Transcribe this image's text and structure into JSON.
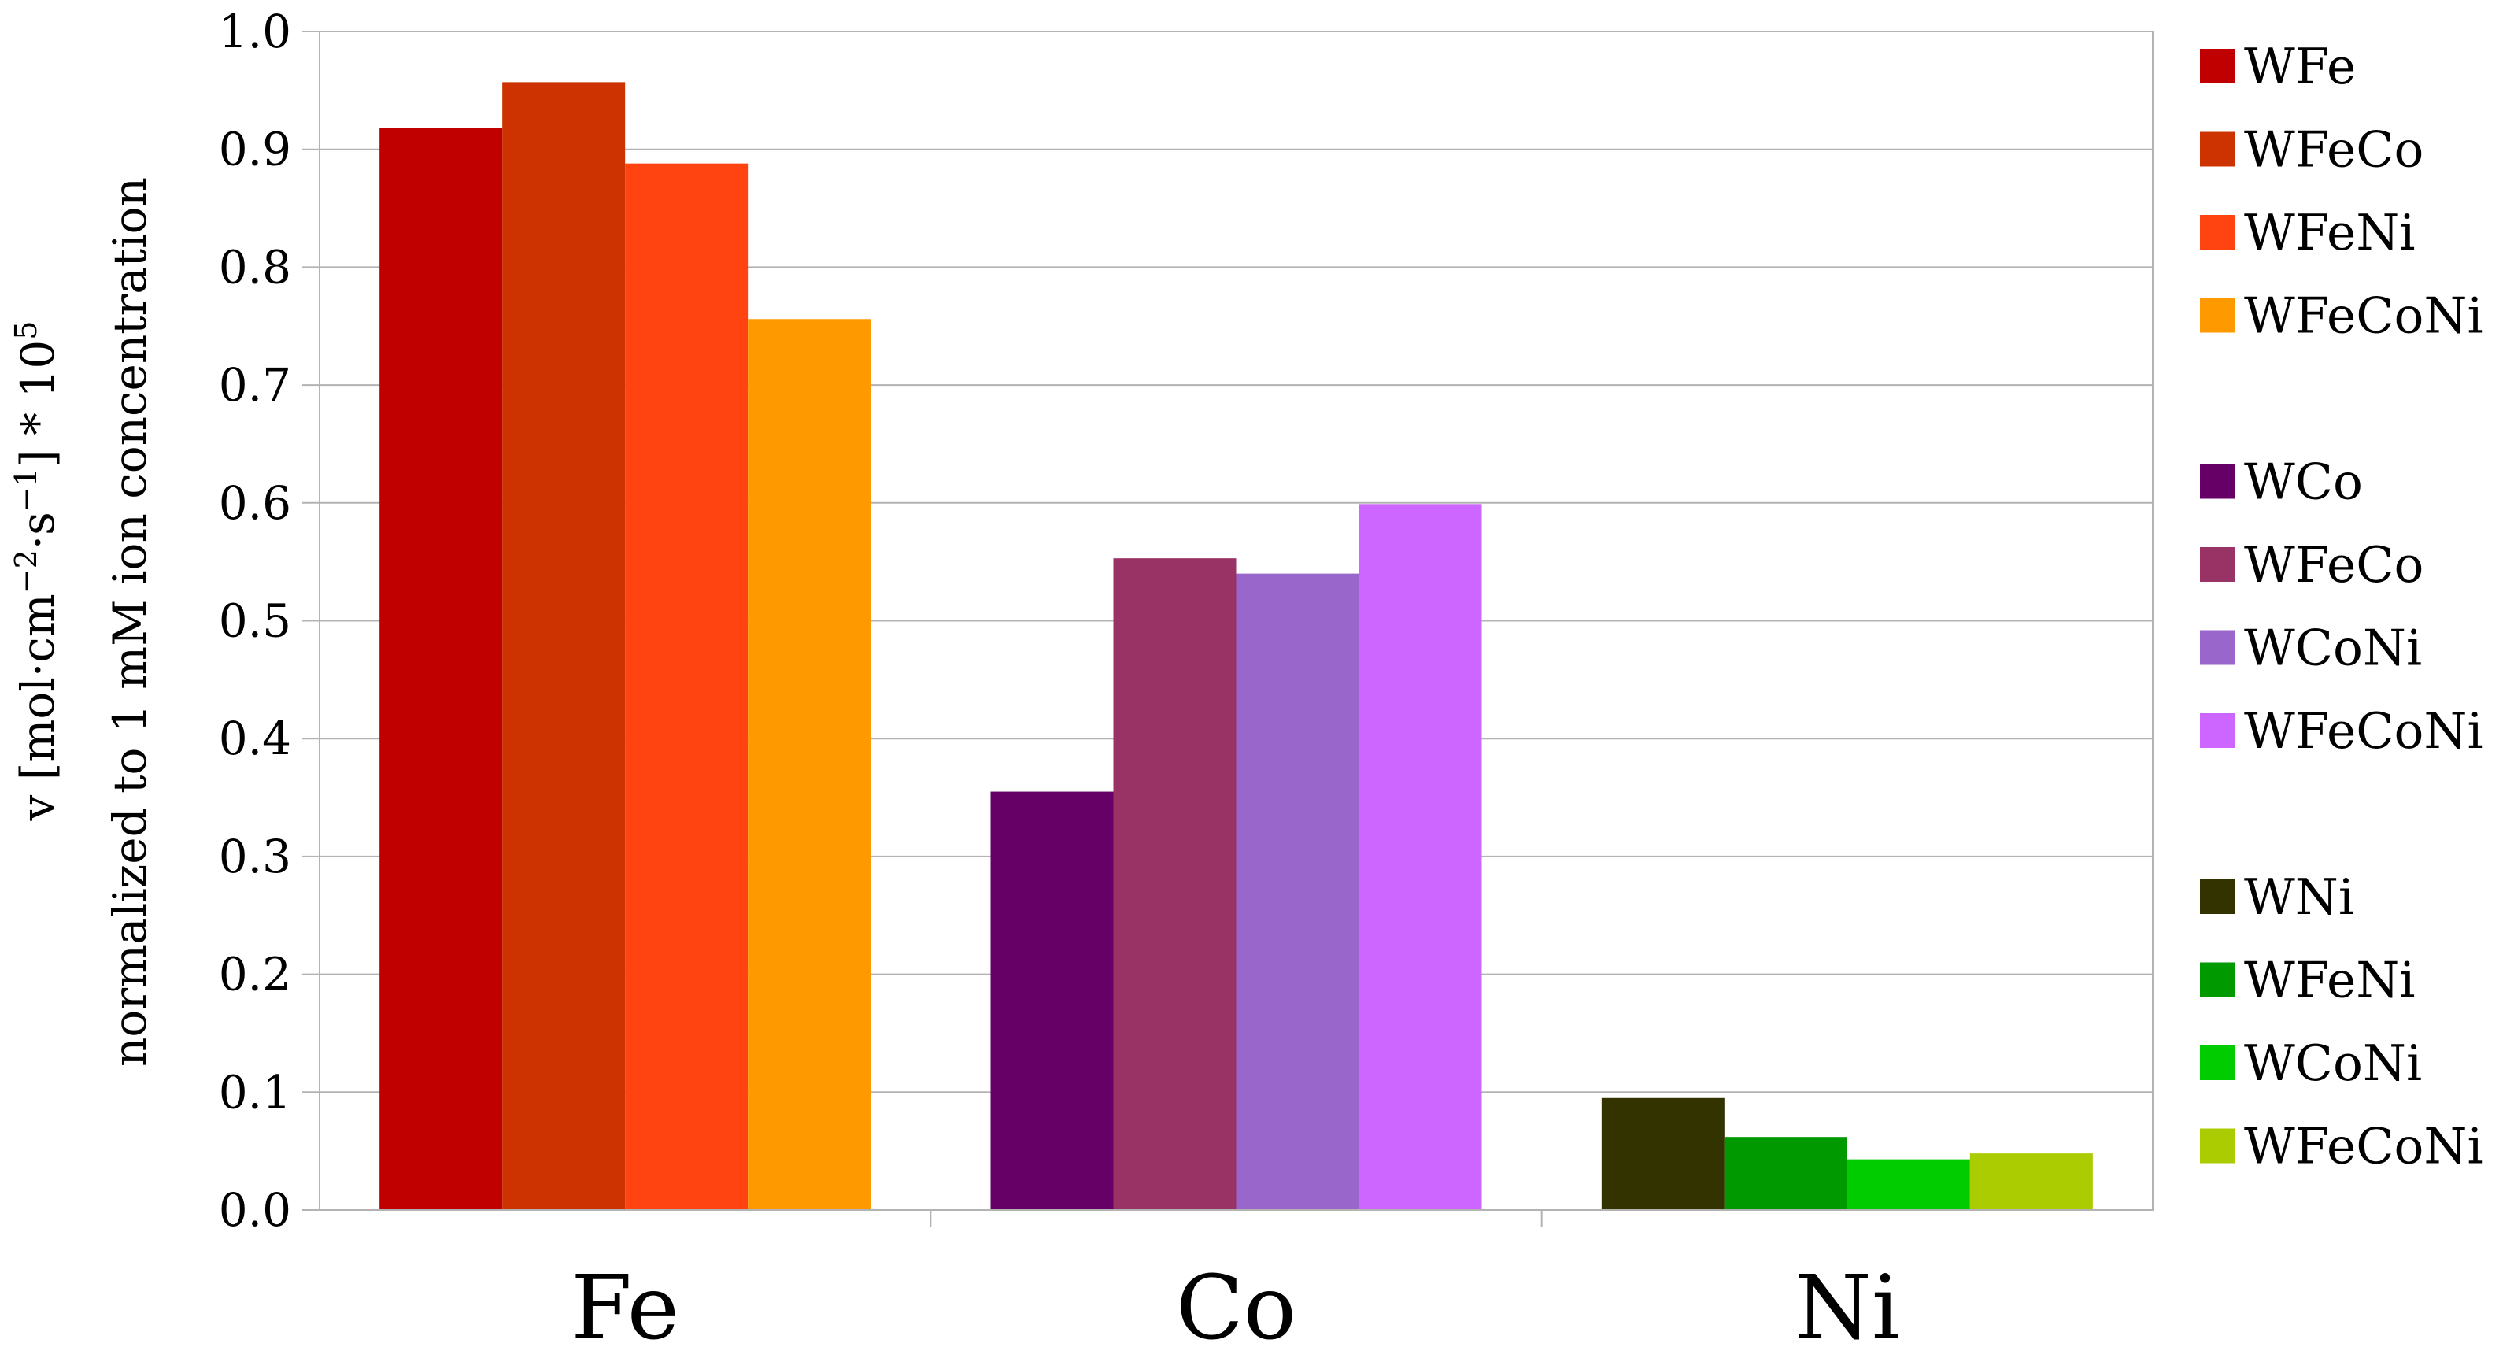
{
  "chart_data": {
    "type": "bar",
    "ylabel_line1_prefix": "v [mol·cm",
    "ylabel_line1_exp1": "−2",
    "ylabel_line1_mid": "·s",
    "ylabel_line1_exp2": "−1",
    "ylabel_line1_suffix": "] * 10",
    "ylabel_line1_exp3": "5",
    "ylabel_line2": "normalized to 1 mM ion concentration",
    "ylim": [
      0.0,
      1.0
    ],
    "yticks": [
      "0.0",
      "0.1",
      "0.2",
      "0.3",
      "0.4",
      "0.5",
      "0.6",
      "0.7",
      "0.8",
      "0.9",
      "1.0"
    ],
    "grid": true,
    "legend_position": "right",
    "groups": [
      {
        "category": "Fe",
        "series": [
          {
            "name": "WFe",
            "value": 0.918,
            "color": "#c00000"
          },
          {
            "name": "WFeCo",
            "value": 0.957,
            "color": "#cc3300"
          },
          {
            "name": "WFeNi",
            "value": 0.888,
            "color": "#ff4411"
          },
          {
            "name": "WFeCoNi",
            "value": 0.756,
            "color": "#ff9900"
          }
        ]
      },
      {
        "category": "Co",
        "series": [
          {
            "name": "WCo",
            "value": 0.355,
            "color": "#660066"
          },
          {
            "name": "WFeCo",
            "value": 0.553,
            "color": "#993366"
          },
          {
            "name": "WCoNi",
            "value": 0.54,
            "color": "#9966cc"
          },
          {
            "name": "WFeCoNi",
            "value": 0.599,
            "color": "#cc66ff"
          }
        ]
      },
      {
        "category": "Ni",
        "series": [
          {
            "name": "WNi",
            "value": 0.095,
            "color": "#333300"
          },
          {
            "name": "WFeNi",
            "value": 0.062,
            "color": "#009900"
          },
          {
            "name": "WCoNi",
            "value": 0.043,
            "color": "#00cc00"
          },
          {
            "name": "WFeCoNi",
            "value": 0.048,
            "color": "#aacc00"
          }
        ]
      }
    ]
  }
}
